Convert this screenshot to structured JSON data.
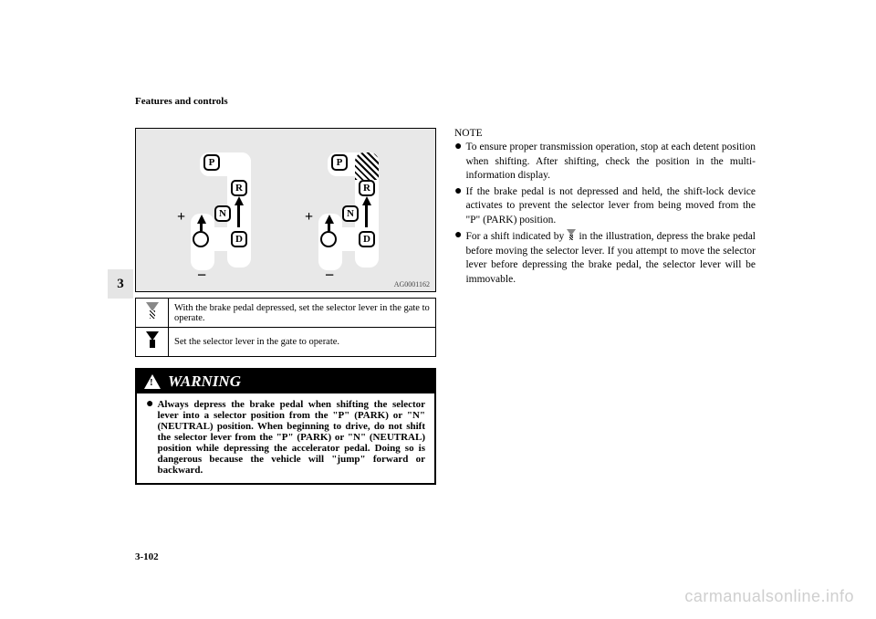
{
  "header": {
    "title": "Features and controls"
  },
  "tab": {
    "label": "3"
  },
  "diagram": {
    "id": "AG0001162",
    "gears": {
      "P": "P",
      "R": "R",
      "N": "N",
      "D": "D"
    },
    "plus": "+",
    "minus": "−",
    "background_color": "#e8e8e8",
    "border_color": "#000000"
  },
  "legend": {
    "rows": [
      {
        "icon": "hatched-down-arrow",
        "text": "With the brake pedal depressed, set the selector lever in the gate to operate."
      },
      {
        "icon": "solid-down-arrow",
        "text": "Set the selector lever in the gate to operate."
      }
    ]
  },
  "warning": {
    "heading": "WARNING",
    "body": "Always depress the brake pedal when shifting the selector lever into a selector position from the \"P\" (PARK) or \"N\" (NEUTRAL) position.\nWhen beginning to drive, do not shift the selector lever from the \"P\" (PARK) or \"N\" (NEUTRAL) position while depressing the accelerator pedal. Doing so is dangerous because the vehicle will \"jump\" forward or backward."
  },
  "note": {
    "heading": "NOTE",
    "items": [
      "To ensure proper transmission operation, stop at each detent position when shifting. After shifting, check the position in the multi-information display.",
      "If the brake pedal is not depressed and held, the shift-lock device activates to prevent the selector lever from being moved from the \"P\" (PARK) position.",
      "For a shift indicated by {arrow} in the illustration, depress the brake pedal before moving the selector lever. If you attempt to move the selector lever before depressing the brake pedal, the selector lever will be immovable."
    ]
  },
  "footer": {
    "page": "3-102"
  },
  "watermark": {
    "text": "carmanualsonline.info"
  },
  "colors": {
    "page_bg": "#ffffff",
    "text": "#000000",
    "tab_bg": "#e5e5e5",
    "watermark": "#cfcfcf"
  },
  "typography": {
    "body_fontsize_pt": 9,
    "heading_fontsize_pt": 13,
    "font_family": "Times New Roman"
  }
}
